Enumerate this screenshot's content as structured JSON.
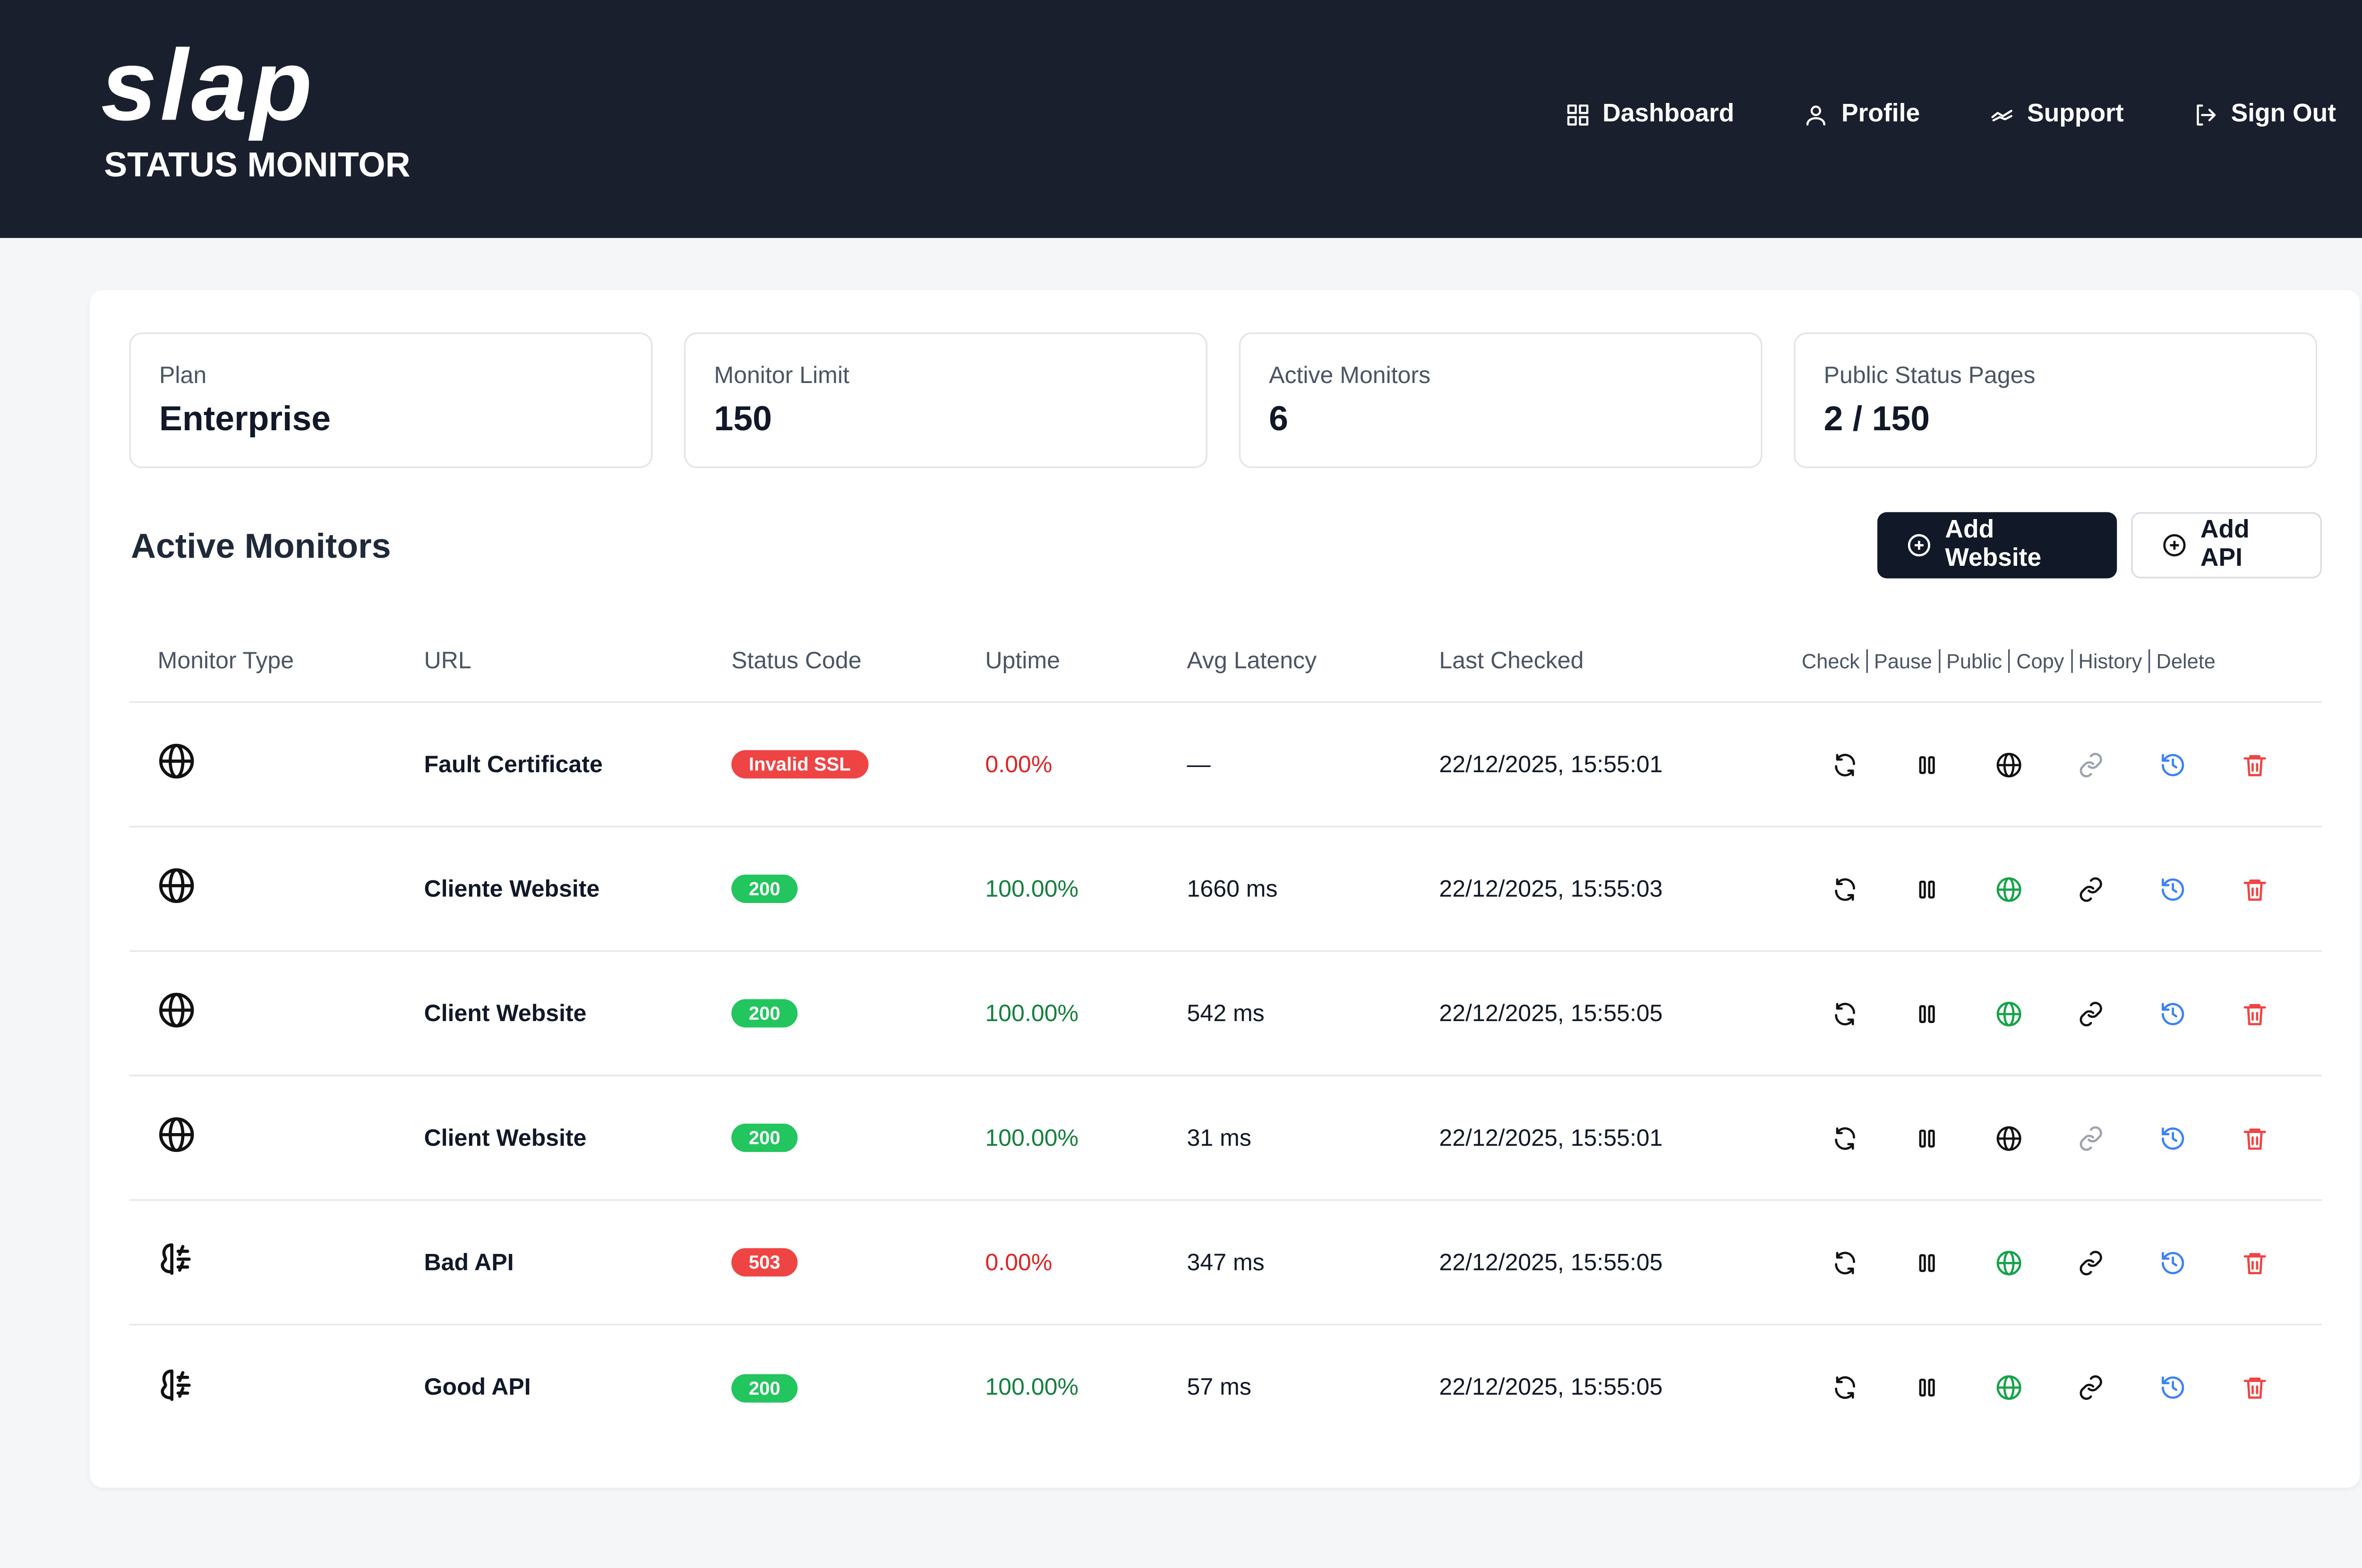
{
  "header": {
    "logo": "slap",
    "subtitle": "STATUS MONITOR",
    "nav": [
      "Dashboard",
      "Profile",
      "Support",
      "Sign Out"
    ]
  },
  "stats": [
    {
      "label": "Plan",
      "value": "Enterprise"
    },
    {
      "label": "Monitor Limit",
      "value": "150"
    },
    {
      "label": "Active Monitors",
      "value": "6"
    },
    {
      "label": "Public Status Pages",
      "value": "2 / 150"
    }
  ],
  "section": {
    "title": "Active Monitors",
    "buttons": [
      "Add Website",
      "Add API"
    ]
  },
  "table": {
    "columns": [
      "Monitor Type",
      "URL",
      "Status Code",
      "Uptime",
      "Avg Latency",
      "Last Checked"
    ],
    "actions": [
      "Check",
      "Pause",
      "Public",
      "Copy",
      "History",
      "Delete"
    ],
    "rows": [
      {
        "type": "website",
        "url": "Fault Certificate",
        "status": "Invalid SSL",
        "ok": false,
        "uptime": "0.00%",
        "latency": "—",
        "checked": "22/12/2025, 15:55:01",
        "public": false
      },
      {
        "type": "website",
        "url": "Cliente Website",
        "status": "200",
        "ok": true,
        "uptime": "100.00%",
        "latency": "1660 ms",
        "checked": "22/12/2025, 15:55:03",
        "public": true
      },
      {
        "type": "website",
        "url": "Client Website",
        "status": "200",
        "ok": true,
        "uptime": "100.00%",
        "latency": "542 ms",
        "checked": "22/12/2025, 15:55:05",
        "public": true
      },
      {
        "type": "website",
        "url": "Client Website",
        "status": "200",
        "ok": true,
        "uptime": "100.00%",
        "latency": "31 ms",
        "checked": "22/12/2025, 15:55:01",
        "public": false
      },
      {
        "type": "api",
        "url": "Bad API",
        "status": "503",
        "ok": false,
        "uptime": "0.00%",
        "latency": "347 ms",
        "checked": "22/12/2025, 15:55:05",
        "public": true
      },
      {
        "type": "api",
        "url": "Good API",
        "status": "200",
        "ok": true,
        "uptime": "100.00%",
        "latency": "57 ms",
        "checked": "22/12/2025, 15:55:05",
        "public": true
      }
    ]
  }
}
